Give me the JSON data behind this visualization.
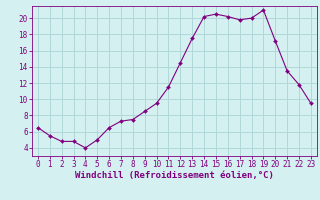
{
  "hours": [
    0,
    1,
    2,
    3,
    4,
    5,
    6,
    7,
    8,
    9,
    10,
    11,
    12,
    13,
    14,
    15,
    16,
    17,
    18,
    19,
    20,
    21,
    22,
    23
  ],
  "values": [
    6.5,
    5.5,
    4.8,
    4.8,
    4.0,
    5.0,
    6.5,
    7.3,
    7.5,
    8.5,
    9.5,
    11.5,
    14.5,
    17.5,
    20.2,
    20.5,
    20.2,
    19.8,
    20.0,
    21.0,
    17.2,
    13.5,
    11.8,
    9.5
  ],
  "line_color": "#800080",
  "marker": "D",
  "marker_size": 2.0,
  "bg_color": "#d4f0f0",
  "grid_color": "#b0d8d8",
  "xlabel": "Windchill (Refroidissement éolien,°C)",
  "ylim": [
    3.0,
    21.5
  ],
  "xlim": [
    -0.5,
    23.5
  ],
  "yticks": [
    4,
    6,
    8,
    10,
    12,
    14,
    16,
    18,
    20
  ],
  "xticks": [
    0,
    1,
    2,
    3,
    4,
    5,
    6,
    7,
    8,
    9,
    10,
    11,
    12,
    13,
    14,
    15,
    16,
    17,
    18,
    19,
    20,
    21,
    22,
    23
  ],
  "tick_color": "#800080",
  "label_color": "#800080",
  "tick_fontsize": 5.5,
  "xlabel_fontsize": 6.5,
  "line_width": 0.8
}
